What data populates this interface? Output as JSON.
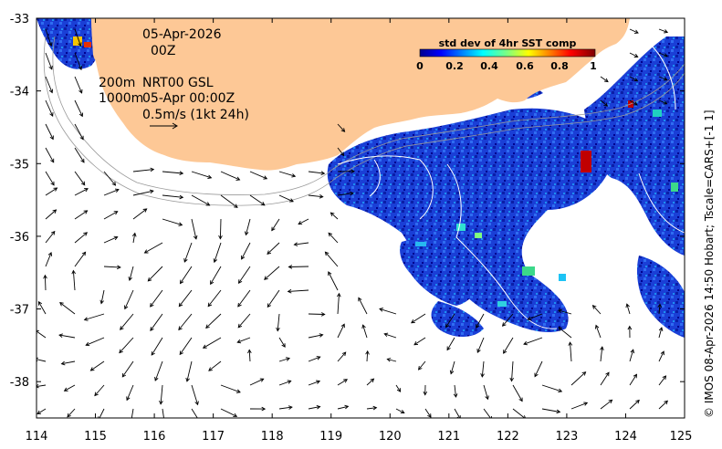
{
  "map": {
    "lon_range": [
      114,
      125
    ],
    "lat_range": [
      -38.5,
      -33
    ],
    "x_ticks": [
      "114",
      "115",
      "116",
      "117",
      "118",
      "119",
      "120",
      "121",
      "122",
      "123",
      "124",
      "125"
    ],
    "y_ticks": [
      "-33",
      "-34",
      "-35",
      "-36",
      "-37",
      "-38"
    ],
    "land_color": "#fdc896",
    "ocean_color": "#ffffff",
    "frame_color": "#000000"
  },
  "annotations": {
    "date": "05-Apr-2026",
    "hour": "00Z",
    "depth1": "200m",
    "depth2": "1000m",
    "product": "NRT00 GSL",
    "valid": "05-Apr 00:00Z",
    "scale": "0.5m/s (1kt 24h)"
  },
  "colorbar": {
    "title": "std dev of 4hr SST comp",
    "ticks": [
      "0",
      "0.2",
      "0.4",
      "0.6",
      "0.8",
      "1"
    ],
    "range": [
      0,
      1
    ]
  },
  "credit": "© IMOS 08-Apr-2026 14:50 Hobart; Tscale=CARS+[-1 1]"
}
